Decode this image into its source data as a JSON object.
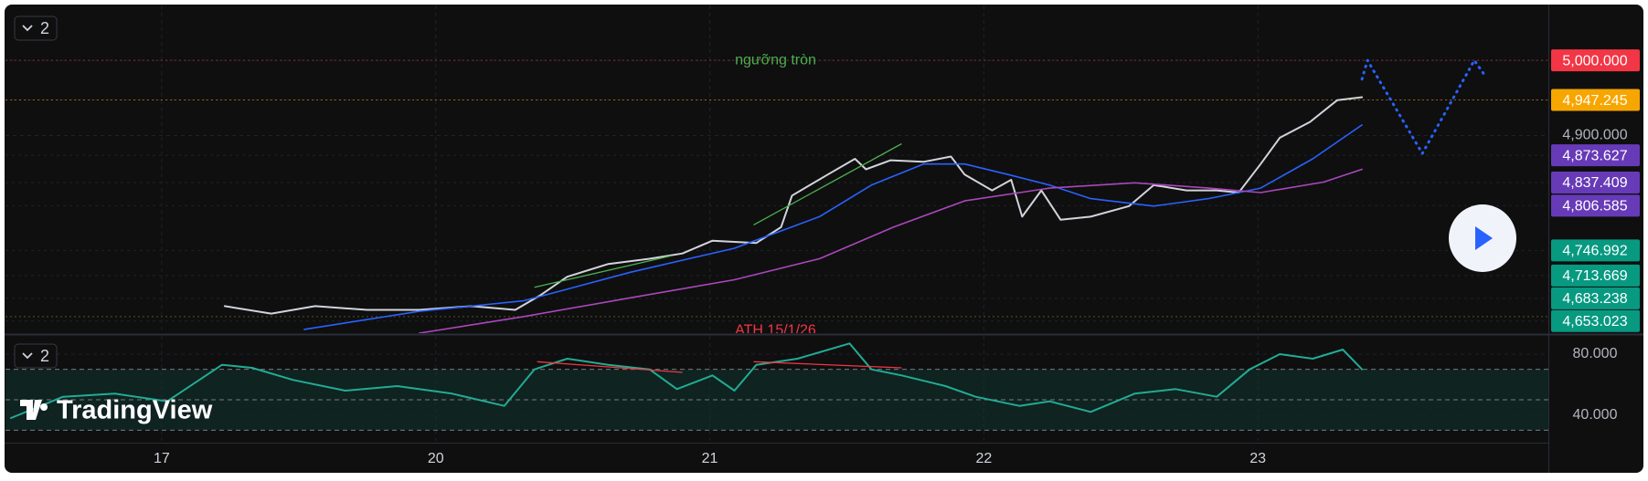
{
  "pane_buttons": [
    "2",
    "2"
  ],
  "logo": "TradingView",
  "chart_data": [
    {
      "type": "line",
      "xlim": [
        -0.57,
        5.06
      ],
      "ylim": [
        4637,
        5073
      ],
      "yticks": [
        {
          "value": 4900,
          "label": "4,900.000"
        }
      ],
      "grid": true,
      "series": [
        {
          "color": "#d1d4dc",
          "x": [
            0.23,
            0.4,
            0.56,
            0.75,
            0.94,
            1.13,
            1.29,
            1.38,
            1.48,
            1.63,
            1.78,
            1.9,
            2.01,
            2.17,
            2.26,
            2.3,
            2.43,
            2.53,
            2.57,
            2.66,
            2.78,
            2.88,
            2.93,
            3.03,
            3.1,
            3.14,
            3.21,
            3.28,
            3.39,
            3.53,
            3.62,
            3.74,
            3.85,
            3.93,
            4.01,
            4.08,
            4.19,
            4.29,
            4.38
          ],
          "values": [
            4673,
            4663,
            4673,
            4668,
            4668,
            4673,
            4668,
            4687,
            4712,
            4729,
            4736,
            4743,
            4760,
            4757,
            4778,
            4820,
            4848,
            4869,
            4855,
            4867,
            4865,
            4872,
            4848,
            4827,
            4841,
            4792,
            4827,
            4788,
            4792,
            4806,
            4834,
            4827,
            4827,
            4824,
            4862,
            4897,
            4918,
            4947,
            4951
          ]
        },
        {
          "color": "#2962ff",
          "x": [
            0.52,
            0.94,
            1.32,
            1.71,
            2.09,
            2.4,
            2.59,
            2.78,
            2.93,
            3.09,
            3.24,
            3.39,
            3.62,
            3.82,
            4.01,
            4.2,
            4.38
          ],
          "values": [
            4642,
            4666,
            4680,
            4718,
            4750,
            4792,
            4834,
            4862,
            4862,
            4848,
            4834,
            4816,
            4806,
            4816,
            4830,
            4869,
            4914
          ]
        },
        {
          "color": "#ab47bc",
          "x": [
            0.94,
            1.32,
            1.71,
            2.09,
            2.4,
            2.67,
            2.93,
            3.24,
            3.55,
            3.82,
            4.01,
            4.24,
            4.38
          ],
          "values": [
            4637,
            4659,
            4684,
            4708,
            4736,
            4778,
            4813,
            4830,
            4837,
            4830,
            4824,
            4838,
            4855
          ]
        },
        {
          "color": "#2962ff",
          "dotted": true,
          "x": [
            4.38,
            4.4,
            4.6,
            4.79,
            4.83
          ],
          "values": [
            4975,
            5000,
            4876,
            5000,
            4979
          ]
        }
      ],
      "trendlines": [
        {
          "color": "#4caf50",
          "x": [
            1.36,
            1.86
          ],
          "values": [
            4698,
            4740
          ]
        },
        {
          "color": "#4caf50",
          "x": [
            2.16,
            2.7
          ],
          "values": [
            4781,
            4889
          ]
        }
      ],
      "levels": [
        {
          "value": 5000,
          "color": "#f23645"
        },
        {
          "value": 4947.245,
          "color": "#f7a600"
        },
        {
          "value": 4659,
          "color": "#8d8d3a"
        }
      ],
      "price_labels": [
        {
          "value": 5000,
          "label": "5,000.000",
          "color": "#f23645"
        },
        {
          "value": 4947.245,
          "label": "4,947.245",
          "color": "#f7a600"
        },
        {
          "value": 4873.627,
          "label": "4,873.627",
          "color": "#673ab7"
        },
        {
          "value": 4837.409,
          "label": "4,837.409",
          "color": "#673ab7"
        },
        {
          "value": 4806.585,
          "label": "4,806.585",
          "color": "#673ab7"
        },
        {
          "value": 4746.992,
          "label": "4,746.992",
          "color": "#089981"
        },
        {
          "value": 4713.669,
          "label": "4,713.669",
          "color": "#089981"
        },
        {
          "value": 4683.238,
          "label": "4,683.238",
          "color": "#089981"
        },
        {
          "value": 4653.023,
          "label": "4,653.023",
          "color": "#089981"
        }
      ],
      "annotations": [
        {
          "text": "ngưỡng tròn",
          "color": "#4caf50",
          "x": 2.24,
          "y": 5000
        },
        {
          "text": "ATH 15/1/26",
          "color": "#f23645",
          "x": 2.24,
          "y": 4640
        }
      ]
    },
    {
      "type": "line",
      "xlim": [
        -0.57,
        5.06
      ],
      "ylim": [
        23,
        92
      ],
      "yticks": [
        {
          "value": 80,
          "label": "80.000"
        },
        {
          "value": 40,
          "label": "40.000"
        }
      ],
      "xticks": [
        {
          "value": 0,
          "label": "17"
        },
        {
          "value": 1,
          "label": "20"
        },
        {
          "value": 2,
          "label": "21"
        },
        {
          "value": 3,
          "label": "22"
        },
        {
          "value": 4,
          "label": "23"
        }
      ],
      "grid": true,
      "levels": [
        70,
        50,
        30
      ],
      "band": [
        30,
        70
      ],
      "series": [
        {
          "color": "#22ab94",
          "x": [
            -0.55,
            -0.36,
            -0.17,
            0.02,
            0.22,
            0.33,
            0.48,
            0.67,
            0.86,
            1.06,
            1.25,
            1.36,
            1.48,
            1.63,
            1.78,
            1.88,
            2.01,
            2.09,
            2.17,
            2.32,
            2.51,
            2.59,
            2.7,
            2.86,
            2.97,
            3.13,
            3.24,
            3.39,
            3.55,
            3.7,
            3.85,
            3.97,
            4.08,
            4.2,
            4.31,
            4.38
          ],
          "values": [
            38,
            52,
            54,
            49,
            73,
            71,
            63,
            56,
            59,
            54,
            46,
            70,
            77,
            73,
            70,
            57,
            66,
            56,
            73,
            77,
            87,
            70,
            66,
            59,
            52,
            46,
            49,
            42,
            54,
            57,
            52,
            70,
            80,
            77,
            83,
            70
          ]
        }
      ],
      "trendlines": [
        {
          "color": "#f23645",
          "x": [
            1.37,
            1.9
          ],
          "values": [
            75,
            68
          ]
        },
        {
          "color": "#f23645",
          "x": [
            2.16,
            2.7
          ],
          "values": [
            75,
            71
          ]
        }
      ]
    }
  ]
}
